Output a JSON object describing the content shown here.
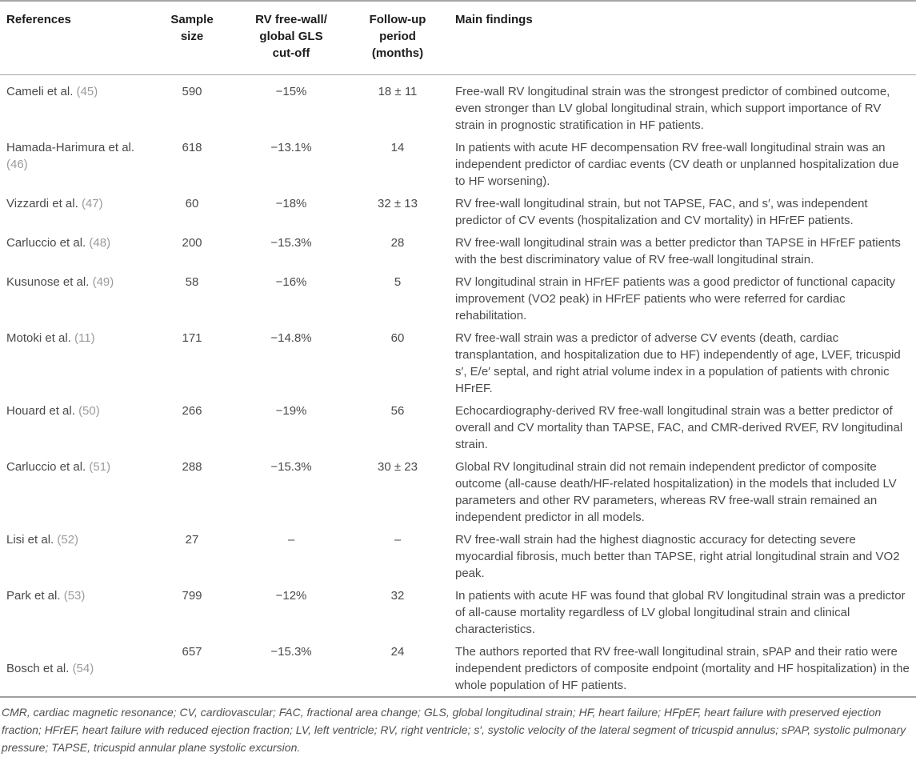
{
  "colors": {
    "header_text": "#1c1c1c",
    "body_text": "#4a4a4a",
    "citation_gray": "#9b9b9b",
    "rule_gray": "#a6a6a6",
    "footnote_text": "#4f4f4f"
  },
  "table": {
    "headers": {
      "references": "References",
      "sample_size": "Sample\nsize",
      "cutoff": "RV free-wall/\nglobal GLS\ncut-off",
      "follow_up": "Follow-up\nperiod\n(months)",
      "findings": "Main findings"
    },
    "rows": [
      {
        "ref": "Cameli et al.",
        "cite": "(45)",
        "n": "590",
        "cutoff": "−15%",
        "followup": "18 ± 11",
        "findings": "Free-wall RV longitudinal strain was the strongest predictor of combined outcome, even stronger than LV global longitudinal strain, which support importance of RV strain in prognostic stratification in HF patients."
      },
      {
        "ref": "Hamada-Harimura et al.",
        "cite": "(46)",
        "n": "618",
        "cutoff": "−13.1%",
        "followup": "14",
        "findings": "In patients with acute HF decompensation RV free-wall longitudinal strain was an independent predictor of cardiac events (CV death or unplanned hospitalization due to HF worsening)."
      },
      {
        "ref": "Vizzardi et al.",
        "cite": "(47)",
        "n": "60",
        "cutoff": "−18%",
        "followup": "32 ± 13",
        "findings": "RV free-wall longitudinal strain, but not TAPSE, FAC, and s′, was independent predictor of CV events (hospitalization and CV mortality) in HFrEF patients."
      },
      {
        "ref": "Carluccio et al.",
        "cite": "(48)",
        "n": "200",
        "cutoff": "−15.3%",
        "followup": "28",
        "findings": "RV free-wall longitudinal strain was a better predictor than TAPSE in HFrEF patients with the best discriminatory value of RV free-wall longitudinal strain."
      },
      {
        "ref": "Kusunose et al.",
        "cite": "(49)",
        "n": "58",
        "cutoff": "−16%",
        "followup": "5",
        "findings": "RV longitudinal strain in HFrEF patients was a good predictor of functional capacity improvement (VO2 peak) in HFrEF patients who were referred for cardiac rehabilitation."
      },
      {
        "ref": "Motoki et al.",
        "cite": "(11)",
        "n": "171",
        "cutoff": "−14.8%",
        "followup": "60",
        "findings": "RV free-wall strain was a predictor of adverse CV events (death, cardiac transplantation, and hospitalization due to HF) independently of age, LVEF, tricuspid s′, E/e′ septal, and right atrial volume index in a population of patients with chronic HFrEF."
      },
      {
        "ref": "Houard et al.",
        "cite": "(50)",
        "n": "266",
        "cutoff": "−19%",
        "followup": "56",
        "findings": "Echocardiography-derived RV free-wall longitudinal strain was a better predictor of overall and CV mortality than TAPSE, FAC, and CMR-derived RVEF, RV longitudinal strain."
      },
      {
        "ref": "Carluccio et al.",
        "cite": "(51)",
        "n": "288",
        "cutoff": "−15.3%",
        "followup": "30 ± 23",
        "findings": "Global RV longitudinal strain did not remain independent predictor of composite outcome (all-cause death/HF-related hospitalization) in the models that included LV parameters and other RV parameters, whereas RV free-wall strain remained an independent predictor in all models."
      },
      {
        "ref": "Lisi et al.",
        "cite": "(52)",
        "n": "27",
        "cutoff": "–",
        "followup": "–",
        "findings": "RV free-wall strain had the highest diagnostic accuracy for detecting severe myocardial fibrosis, much better than TAPSE, right atrial longitudinal strain and VO2 peak."
      },
      {
        "ref": "Park et al.",
        "cite": "(53)",
        "n": "799",
        "cutoff": "−12%",
        "followup": "32",
        "findings": "In patients with acute HF was found that global RV longitudinal strain was a predictor of all-cause mortality regardless of LV global longitudinal strain and clinical characteristics."
      },
      {
        "ref": "Bosch et al.",
        "cite": "(54)",
        "n": "657",
        "cutoff": "−15.3%",
        "followup": "24",
        "findings": "The authors reported that RV free-wall longitudinal strain, sPAP and their ratio were independent predictors of composite endpoint (mortality and HF hospitalization) in the whole population of HF patients."
      }
    ],
    "footnote": "CMR, cardiac magnetic resonance; CV, cardiovascular; FAC, fractional area change; GLS, global longitudinal strain; HF, heart failure; HFpEF, heart failure with preserved ejection fraction; HFrEF, heart failure with reduced ejection fraction; LV, left ventricle; RV, right ventricle; s′, systolic velocity of the lateral segment of tricuspid annulus; sPAP, systolic pulmonary pressure; TAPSE, tricuspid annular plane systolic excursion."
  }
}
